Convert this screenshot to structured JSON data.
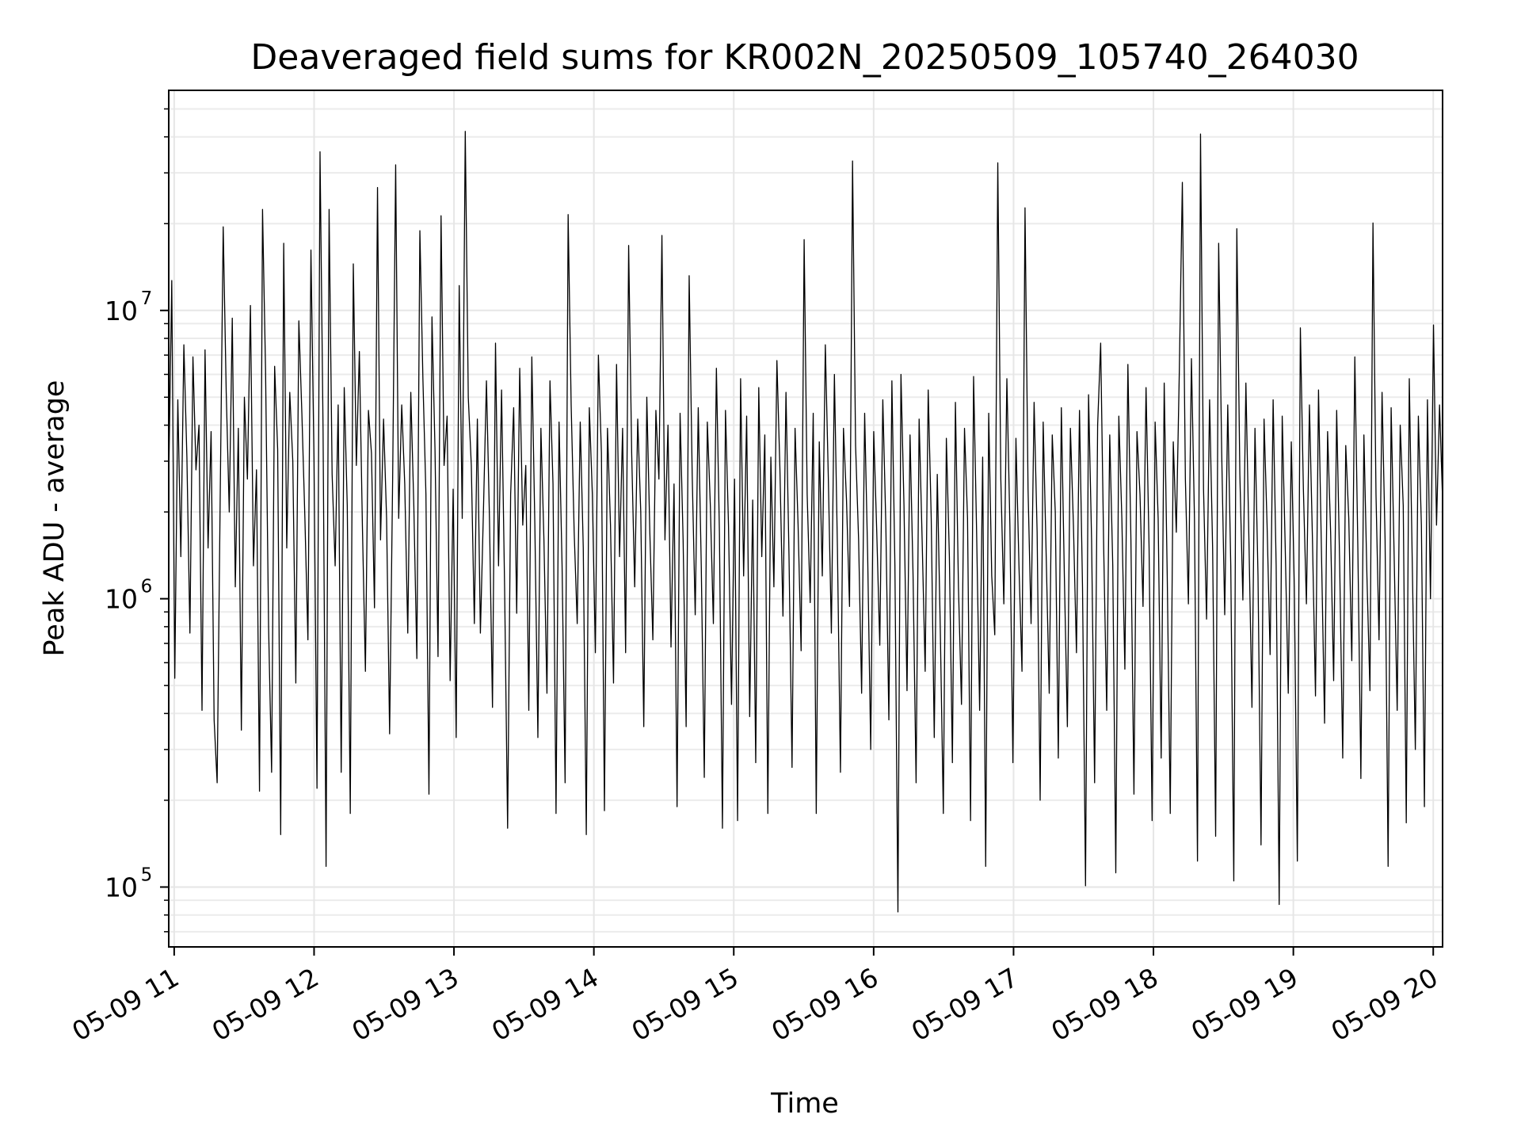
{
  "chart_data": {
    "type": "line",
    "title": "Deaveraged field sums for KR002N_20250509_105740_264030",
    "xlabel": "Time",
    "ylabel": "Peak ADU - average",
    "yscale": "log",
    "ylim": [
      62000,
      58000000
    ],
    "xlim": [
      "2025-05-09 10:57:40",
      "2025-05-09 20:04:00"
    ],
    "grid": "both (major and minor)",
    "line_color": "#000000",
    "x_ticks": [
      {
        "label": "05-09 11",
        "value": "2025-05-09 11:00"
      },
      {
        "label": "05-09 12",
        "value": "2025-05-09 12:00"
      },
      {
        "label": "05-09 13",
        "value": "2025-05-09 13:00"
      },
      {
        "label": "05-09 14",
        "value": "2025-05-09 14:00"
      },
      {
        "label": "05-09 15",
        "value": "2025-05-09 15:00"
      },
      {
        "label": "05-09 16",
        "value": "2025-05-09 16:00"
      },
      {
        "label": "05-09 17",
        "value": "2025-05-09 17:00"
      },
      {
        "label": "05-09 18",
        "value": "2025-05-09 18:00"
      },
      {
        "label": "05-09 19",
        "value": "2025-05-09 19:00"
      },
      {
        "label": "05-09 20",
        "value": "2025-05-09 20:00"
      }
    ],
    "y_ticks": [
      {
        "base": "10",
        "exp": "5",
        "value": 100000
      },
      {
        "base": "10",
        "exp": "6",
        "value": 1000000
      },
      {
        "base": "10",
        "exp": "7",
        "value": 10000000
      }
    ],
    "series": [
      {
        "x_start": "2025-05-09 10:57:40",
        "x_end": "2025-05-09 20:04:00",
        "points_note_free": true,
        "y": [
          2600000,
          12700000,
          530000,
          4900000,
          1400000,
          7600000,
          3100000,
          760000,
          6900000,
          2800000,
          4000000,
          410000,
          7300000,
          1500000,
          3800000,
          380000,
          230000,
          2200000,
          19500000,
          5200000,
          2000000,
          9400000,
          1100000,
          3900000,
          350000,
          5000000,
          2600000,
          10400000,
          1300000,
          2800000,
          215000,
          22400000,
          6200000,
          800000,
          250000,
          6400000,
          3300000,
          152000,
          17100000,
          1500000,
          5200000,
          3000000,
          510000,
          9200000,
          4400000,
          1900000,
          720000,
          16200000,
          3100000,
          220000,
          35500000,
          3900000,
          118000,
          22400000,
          2700000,
          1300000,
          4700000,
          250000,
          5400000,
          2100000,
          180000,
          14500000,
          2900000,
          7200000,
          1800000,
          560000,
          4500000,
          3200000,
          930000,
          26700000,
          1600000,
          4200000,
          1900000,
          340000,
          2600000,
          32000000,
          1900000,
          4700000,
          2500000,
          760000,
          5200000,
          2100000,
          620000,
          18900000,
          5800000,
          2300000,
          210000,
          9500000,
          3300000,
          630000,
          21300000,
          2900000,
          4300000,
          520000,
          2400000,
          330000,
          12200000,
          1900000,
          41800000,
          5000000,
          2900000,
          820000,
          4200000,
          760000,
          2000000,
          5700000,
          1900000,
          420000,
          7700000,
          1300000,
          5300000,
          1100000,
          160000,
          2300000,
          4600000,
          890000,
          6300000,
          1800000,
          2900000,
          410000,
          6900000,
          1800000,
          330000,
          3900000,
          1600000,
          470000,
          5700000,
          2500000,
          180000,
          4100000,
          1300000,
          230000,
          21500000,
          4700000,
          1700000,
          820000,
          4100000,
          1500000,
          152000,
          4600000,
          2300000,
          650000,
          7000000,
          3200000,
          184000,
          3900000,
          1800000,
          510000,
          6500000,
          1400000,
          3900000,
          650000,
          16800000,
          3200000,
          1100000,
          4200000,
          2000000,
          360000,
          5000000,
          1700000,
          720000,
          4500000,
          2600000,
          18200000,
          1600000,
          4000000,
          680000,
          2500000,
          190000,
          4400000,
          1600000,
          360000,
          13200000,
          2700000,
          880000,
          4600000,
          1300000,
          240000,
          4100000,
          2100000,
          820000,
          6300000,
          1700000,
          160000,
          4500000,
          1800000,
          430000,
          2600000,
          170000,
          5800000,
          1200000,
          4300000,
          390000,
          2200000,
          270000,
          5400000,
          1400000,
          3700000,
          180000,
          3100000,
          1100000,
          6700000,
          2800000,
          870000,
          5200000,
          1400000,
          260000,
          3900000,
          1800000,
          660000,
          17600000,
          2300000,
          970000,
          4400000,
          180000,
          3500000,
          1200000,
          7600000,
          2600000,
          760000,
          6000000,
          1500000,
          250000,
          3900000,
          2200000,
          940000,
          33000000,
          3400000,
          1600000,
          470000,
          4400000,
          1400000,
          300000,
          3800000,
          1700000,
          690000,
          4900000,
          1800000,
          380000,
          5700000,
          1300000,
          82000,
          6000000,
          2100000,
          480000,
          3700000,
          1200000,
          230000,
          4200000,
          1600000,
          560000,
          5300000,
          1900000,
          330000,
          2700000,
          780000,
          180000,
          3600000,
          1400000,
          270000,
          4800000,
          1100000,
          430000,
          3900000,
          1900000,
          170000,
          5900000,
          1700000,
          410000,
          3100000,
          118000,
          4400000,
          1200000,
          750000,
          32500000,
          2600000,
          960000,
          5800000,
          1800000,
          270000,
          3600000,
          1300000,
          560000,
          22700000,
          2400000,
          820000,
          4800000,
          1700000,
          200000,
          4100000,
          1400000,
          470000,
          3700000,
          2000000,
          280000,
          4600000,
          1200000,
          360000,
          3900000,
          1800000,
          650000,
          4500000,
          1100000,
          101000,
          5100000,
          1600000,
          230000,
          4000000,
          7700000,
          1500000,
          410000,
          3700000,
          1300000,
          112000,
          4300000,
          1900000,
          570000,
          6500000,
          1600000,
          210000,
          3800000,
          2300000,
          940000,
          5400000,
          1500000,
          170000,
          4100000,
          1900000,
          280000,
          5600000,
          1200000,
          180000,
          3500000,
          1700000,
          6200000,
          27800000,
          2600000,
          960000,
          6800000,
          1900000,
          123000,
          40900000,
          2400000,
          850000,
          4900000,
          1500000,
          150000,
          17100000,
          3200000,
          880000,
          4700000,
          1300000,
          105000,
          19200000,
          2700000,
          990000,
          5600000,
          1600000,
          420000,
          3900000,
          1200000,
          140000,
          4200000,
          1800000,
          640000,
          4900000,
          1300000,
          87000,
          4300000,
          1500000,
          470000,
          3500000,
          1100000,
          123000,
          8700000,
          2400000,
          960000,
          4700000,
          1600000,
          460000,
          5300000,
          1400000,
          370000,
          3800000,
          1700000,
          520000,
          4500000,
          1300000,
          280000,
          3400000,
          1900000,
          610000,
          6900000,
          1500000,
          238000,
          3700000,
          1200000,
          480000,
          20100000,
          2300000,
          720000,
          5200000,
          1600000,
          118000,
          4600000,
          1400000,
          410000,
          4000000,
          2100000,
          167000,
          5800000,
          1300000,
          300000,
          4300000,
          1800000,
          190000,
          4900000,
          1000000,
          8900000,
          1800000,
          4700000,
          2200000
        ]
      }
    ]
  }
}
